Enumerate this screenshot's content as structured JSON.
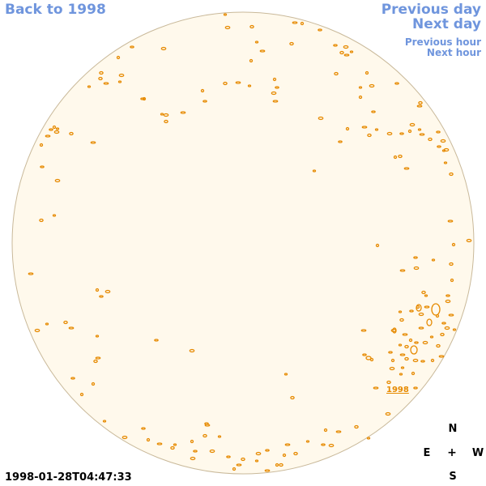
{
  "nav": {
    "back_label": "Back to 1998",
    "previous_day_label": "Previous day",
    "next_day_label": "Next day",
    "previous_hour_label": "Previous hour",
    "next_hour_label": "Next hour"
  },
  "disc": {
    "fill_color": "#fff9ec",
    "rim_color": "#c9b99a",
    "contour_color": "#e68a00"
  },
  "active_region": {
    "label": "1998"
  },
  "compass": {
    "north": "N",
    "south": "S",
    "east": "E",
    "west": "W",
    "center": "+"
  },
  "timestamp": "1998-01-28T04:47:33"
}
